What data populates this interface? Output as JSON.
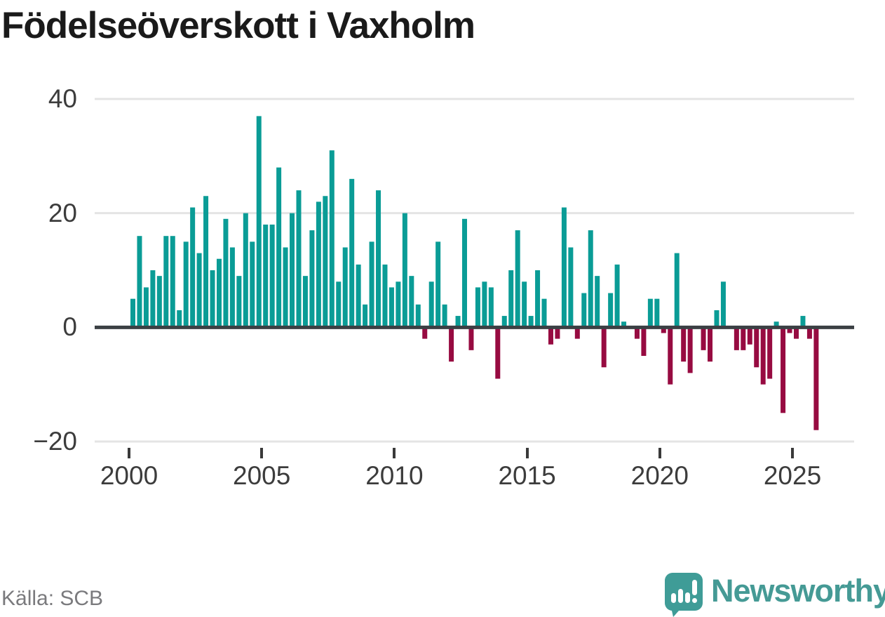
{
  "title": "Födelseöverskott i Vaxholm",
  "source": "Källa: SCB",
  "brand": {
    "name": "Newsworthy",
    "icon": "newsworthy-speech-bubble-chart-icon"
  },
  "colors": {
    "positive": "#0a9c96",
    "negative": "#970b41",
    "axis": "#3b4044",
    "grid": "#e4e4e4",
    "tick": "#3a3a3a",
    "label": "#3c3c3c",
    "title": "#1a1a1a",
    "source": "#7a7a7d",
    "brand": "#459a95"
  },
  "chart_data": {
    "type": "bar",
    "title": "Födelseöverskott i Vaxholm",
    "source": "Källa: SCB",
    "x_unit": "quarter",
    "start": "2000-Q1",
    "end": "2025-Q4",
    "values": [
      5,
      16,
      7,
      10,
      9,
      16,
      16,
      3,
      15,
      21,
      13,
      23,
      10,
      12,
      19,
      14,
      9,
      20,
      15,
      37,
      18,
      18,
      28,
      14,
      20,
      24,
      9,
      17,
      22,
      23,
      31,
      8,
      14,
      26,
      11,
      4,
      15,
      24,
      11,
      7,
      8,
      20,
      9,
      4,
      -2,
      8,
      15,
      4,
      -6,
      2,
      19,
      -4,
      7,
      8,
      7,
      -9,
      2,
      10,
      17,
      8,
      2,
      10,
      5,
      -3,
      -2,
      21,
      14,
      -2,
      6,
      17,
      9,
      -7,
      6,
      11,
      1,
      0,
      -2,
      -5,
      5,
      5,
      -1,
      -10,
      13,
      -6,
      -8,
      0,
      -4,
      -6,
      3,
      8,
      0,
      -4,
      -4,
      -3,
      -7,
      -10,
      -9,
      1,
      -15,
      -1,
      -2,
      2,
      -2,
      -18
    ],
    "ylim": [
      -20,
      40
    ],
    "yticks": [
      40,
      20,
      0,
      -20
    ],
    "xticks": [
      2000,
      2005,
      2010,
      2015,
      2020,
      2025
    ],
    "grid": true,
    "legend": false,
    "bar_positive_color": "#0a9c96",
    "bar_negative_color": "#970b41"
  }
}
